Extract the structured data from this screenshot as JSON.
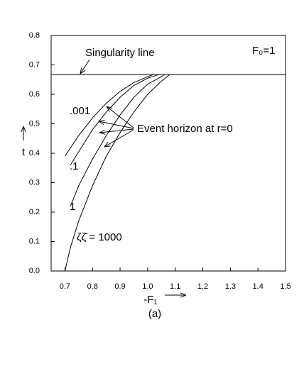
{
  "chart_data": {
    "type": "line",
    "xlabel": "-F₁",
    "ylabel": "t",
    "caption": "(a)",
    "annotations": {
      "singularity": "Singularity line",
      "param": "F₀=1",
      "horizon": "Event horizon at r=0"
    },
    "hline": 0.667,
    "xlim": [
      0.65,
      1.5
    ],
    "ylim": [
      0,
      0.8
    ],
    "xticks": [
      0.7,
      0.8,
      0.9,
      {
        "value": 1,
        "label": "1.0"
      },
      1.1,
      1.2,
      1.3,
      1.4,
      1.5
    ],
    "yticks": [
      {
        "value": 0,
        "label": "0.0"
      },
      0.1,
      0.2,
      0.3,
      0.4,
      0.5,
      0.6,
      0.7,
      0.8
    ],
    "color": "#000000",
    "series": [
      {
        "name": ".001",
        "x": [
          0.7,
          0.75,
          0.8,
          0.85,
          0.9,
          0.95,
          1.0,
          1.02
        ],
        "values": [
          0.39,
          0.46,
          0.52,
          0.57,
          0.61,
          0.64,
          0.66,
          0.667
        ]
      },
      {
        "name": ".1",
        "x": [
          0.72,
          0.8,
          0.85,
          0.9,
          0.95,
          1.0,
          1.04
        ],
        "values": [
          0.36,
          0.48,
          0.54,
          0.59,
          0.63,
          0.655,
          0.667
        ]
      },
      {
        "name": "1",
        "x": [
          0.72,
          0.75,
          0.8,
          0.85,
          0.9,
          0.95,
          1.0,
          1.05,
          1.06
        ],
        "values": [
          0.22,
          0.29,
          0.38,
          0.46,
          0.53,
          0.59,
          0.635,
          0.66,
          0.667
        ]
      },
      {
        "name": "ζζ̄ = 1000",
        "x": [
          0.7,
          0.72,
          0.75,
          0.8,
          0.85,
          0.9,
          0.95,
          1.0,
          1.05,
          1.08
        ],
        "values": [
          0.0,
          0.08,
          0.17,
          0.29,
          0.39,
          0.47,
          0.54,
          0.6,
          0.645,
          0.667
        ]
      }
    ]
  }
}
